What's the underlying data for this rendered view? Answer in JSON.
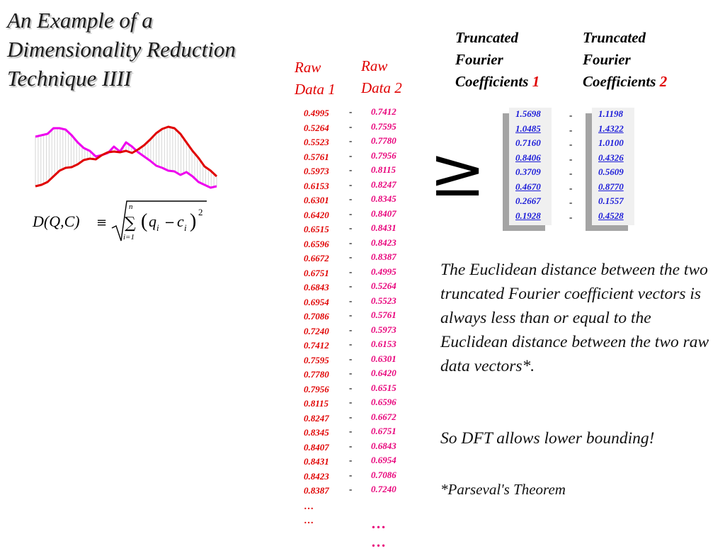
{
  "title": {
    "lines": [
      "An Example of a",
      "Dimensionality Reduction",
      "Technique IIII"
    ]
  },
  "raw_data_1": {
    "header_lines": [
      "Raw",
      "Data 1"
    ],
    "values": [
      "0.4995",
      "0.5264",
      "0.5523",
      "0.5761",
      "0.5973",
      "0.6153",
      "0.6301",
      "0.6420",
      "0.6515",
      "0.6596",
      "0.6672",
      "0.6751",
      "0.6843",
      "0.6954",
      "0.7086",
      "0.7240",
      "0.7412",
      "0.7595",
      "0.7780",
      "0.7956",
      "0.8115",
      "0.8247",
      "0.8345",
      "0.8407",
      "0.8431",
      "0.8423",
      "0.8387"
    ],
    "ellipses": [
      "…",
      "…"
    ]
  },
  "raw_data_2": {
    "header_lines": [
      "Raw",
      "Data 2"
    ],
    "values": [
      "0.7412",
      "0.7595",
      "0.7780",
      "0.7956",
      "0.8115",
      "0.8247",
      "0.8345",
      "0.8407",
      "0.8431",
      "0.8423",
      "0.8387",
      "0.4995",
      "0.5264",
      "0.5523",
      "0.5761",
      "0.5973",
      "0.6153",
      "0.6301",
      "0.6420",
      "0.6515",
      "0.6596",
      "0.6672",
      "0.6751",
      "0.6843",
      "0.6954",
      "0.7086",
      "0.7240"
    ],
    "ellipses": [
      "…",
      "…"
    ]
  },
  "separator": "-",
  "truncated_coefficients_1": {
    "header_lines": [
      "Truncated",
      "Fourier",
      "Coefficients "
    ],
    "header_number": "1",
    "values": [
      {
        "text": "1.5698",
        "underlined": false
      },
      {
        "text": "1.0485",
        "underlined": true
      },
      {
        "text": "0.7160",
        "underlined": false
      },
      {
        "text": "0.8406",
        "underlined": true
      },
      {
        "text": "0.3709",
        "underlined": false
      },
      {
        "text": "0.4670",
        "underlined": true
      },
      {
        "text": "0.2667",
        "underlined": false
      },
      {
        "text": "0.1928",
        "underlined": true
      }
    ]
  },
  "truncated_coefficients_2": {
    "header_lines": [
      "Truncated",
      "Fourier",
      "Coefficients "
    ],
    "header_number": "2",
    "values": [
      {
        "text": "1.1198",
        "underlined": false
      },
      {
        "text": "1.4322",
        "underlined": true
      },
      {
        "text": "1.0100",
        "underlined": false
      },
      {
        "text": "0.4326",
        "underlined": true
      },
      {
        "text": "0.5609",
        "underlined": false
      },
      {
        "text": "0.8770",
        "underlined": true
      },
      {
        "text": "0.1557",
        "underlined": false
      },
      {
        "text": "0.4528",
        "underlined": true
      }
    ]
  },
  "relation_symbol": "≥",
  "formula": {
    "lhs": "D(Q,C)",
    "equiv": "≡",
    "sum_upper": "n",
    "sum_lower": "i=1",
    "sum_symbol": "∑",
    "term_q": "q",
    "term_c": "c",
    "subscript": "i",
    "minus": "−",
    "exponent": "2"
  },
  "explanation": {
    "paragraph1": "The Euclidean distance between the two truncated Fourier coefficient vectors is always less than or equal to the Euclidean distance between the two raw data vectors*.",
    "paragraph2": "So DFT allows lower bounding!",
    "footnote": "*Parseval's Theorem"
  },
  "plot": {
    "series_colors": {
      "series1": "#e00000",
      "series2": "#ee00ee"
    },
    "connector_color": "#d6d6d6",
    "series1_shape": [
      0.08,
      0.1,
      0.14,
      0.22,
      0.3,
      0.34,
      0.35,
      0.39,
      0.45,
      0.47,
      0.46,
      0.52,
      0.56,
      0.57,
      0.56,
      0.58,
      0.55,
      0.6,
      0.66,
      0.74,
      0.83,
      0.89,
      0.92,
      0.9,
      0.82,
      0.7,
      0.58,
      0.48,
      0.36,
      0.3,
      0.22
    ],
    "series2_shape": [
      0.78,
      0.8,
      0.82,
      0.9,
      0.9,
      0.88,
      0.8,
      0.7,
      0.62,
      0.58,
      0.5,
      0.52,
      0.55,
      0.64,
      0.57,
      0.7,
      0.64,
      0.56,
      0.5,
      0.44,
      0.37,
      0.34,
      0.3,
      0.29,
      0.24,
      0.28,
      0.22,
      0.14,
      0.1,
      0.06,
      0.08
    ]
  }
}
